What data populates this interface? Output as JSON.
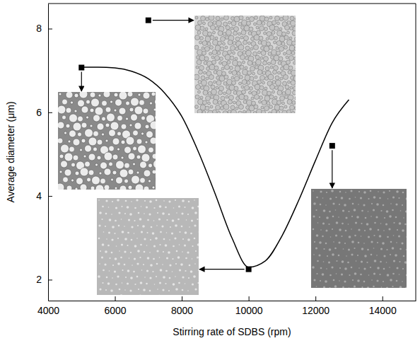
{
  "chart_data": {
    "type": "line",
    "x_label": "Stirring rate of SDBS (rpm)",
    "y_label": "Average diameter (μm)",
    "xlim": [
      4000,
      15000
    ],
    "xticks": [
      4000,
      6000,
      8000,
      10000,
      12000,
      14000
    ],
    "ylim": [
      1.5,
      8.6
    ],
    "yticks": [
      2,
      4,
      6,
      8
    ],
    "grid": false,
    "series": [
      {
        "type": "line",
        "color": "#000000",
        "line_style": "solid",
        "x": [
          5000,
          5500,
          6000,
          6500,
          7000,
          7500,
          8000,
          8500,
          9000,
          9500,
          10000,
          10500,
          11000,
          11500,
          12000,
          12500,
          13000
        ],
        "values": [
          7.08,
          7.08,
          7.06,
          6.98,
          6.8,
          6.45,
          5.9,
          5.05,
          4.05,
          3.0,
          2.3,
          2.45,
          3.05,
          3.9,
          4.85,
          5.75,
          6.3
        ]
      },
      {
        "type": "scatter",
        "color": "#000000",
        "marker": "square",
        "x": [
          5000,
          7000,
          10000,
          12500
        ],
        "values": [
          7.07,
          8.2,
          2.25,
          5.2
        ]
      }
    ]
  }
}
